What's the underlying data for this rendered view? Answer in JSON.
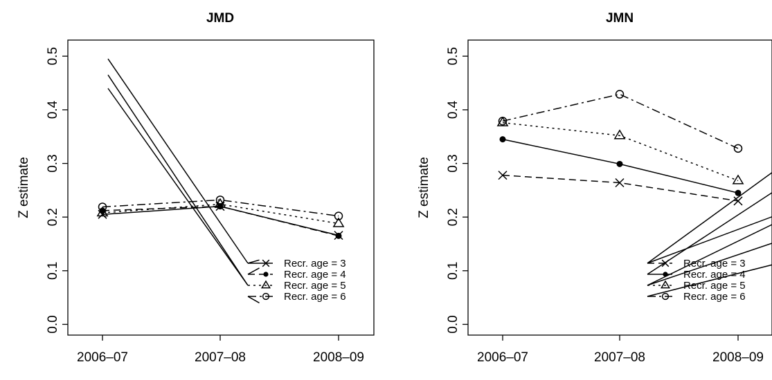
{
  "chart_data": [
    {
      "type": "line",
      "title": "JMD",
      "ylabel": "Z estimate",
      "xlabel": "",
      "categories": [
        "2006–07",
        "2007–08",
        "2008–09"
      ],
      "ylim": [
        -0.02,
        0.53
      ],
      "yticks": [
        "0.0",
        "0.1",
        "0.2",
        "0.3",
        "0.4",
        "0.5"
      ],
      "legend_position": "bottom-right",
      "series": [
        {
          "name": "Recr. age = 3",
          "marker": "x",
          "dash": "solid",
          "values": [
            0.205,
            0.22,
            0.166
          ]
        },
        {
          "name": "Recr. age = 4",
          "marker": "filled-circle",
          "dash": "long-dash",
          "values": [
            0.212,
            0.22,
            0.165
          ]
        },
        {
          "name": "Recr. age = 5",
          "marker": "triangle",
          "dash": "dotted",
          "values": [
            0.208,
            0.224,
            0.188
          ]
        },
        {
          "name": "Recr. age = 6",
          "marker": "open-circle",
          "dash": "dot-dash",
          "values": [
            0.219,
            0.232,
            0.202
          ]
        }
      ]
    },
    {
      "type": "line",
      "title": "JMN",
      "ylabel": "Z estimate",
      "xlabel": "",
      "categories": [
        "2006–07",
        "2007–08",
        "2008–09"
      ],
      "ylim": [
        -0.02,
        0.53
      ],
      "yticks": [
        "0.0",
        "0.1",
        "0.2",
        "0.3",
        "0.4",
        "0.5"
      ],
      "legend_position": "bottom-right",
      "series": [
        {
          "name": "Recr. age = 3",
          "marker": "x",
          "dash": "long-dash",
          "values": [
            0.278,
            0.264,
            0.23
          ]
        },
        {
          "name": "Recr. age = 4",
          "marker": "filled-circle",
          "dash": "solid",
          "values": [
            0.345,
            0.299,
            0.245
          ]
        },
        {
          "name": "Recr. age = 5",
          "marker": "triangle",
          "dash": "dotted",
          "values": [
            0.376,
            0.352,
            0.268
          ]
        },
        {
          "name": "Recr. age = 6",
          "marker": "open-circle",
          "dash": "dot-dash",
          "values": [
            0.379,
            0.429,
            0.328
          ]
        }
      ]
    }
  ]
}
